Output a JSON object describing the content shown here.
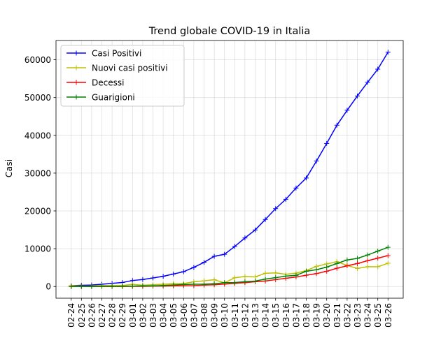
{
  "chart_data": {
    "type": "line",
    "title": "Trend globale COVID-19 in Italia",
    "xlabel": "",
    "ylabel": "Casi",
    "ylim": [
      -3100,
      65100
    ],
    "yticks": [
      0,
      10000,
      20000,
      30000,
      40000,
      50000,
      60000
    ],
    "ytick_labels": [
      "0",
      "10000",
      "20000",
      "30000",
      "40000",
      "50000",
      "60000"
    ],
    "grid": true,
    "legend_position": "top-left",
    "categories": [
      "02-24",
      "02-25",
      "02-26",
      "02-27",
      "02-28",
      "02-29",
      "03-01",
      "03-02",
      "03-03",
      "03-04",
      "03-05",
      "03-06",
      "03-07",
      "03-08",
      "03-09",
      "03-10",
      "03-11",
      "03-12",
      "03-13",
      "03-14",
      "03-15",
      "03-16",
      "03-17",
      "03-18",
      "03-19",
      "03-20",
      "03-21",
      "03-22",
      "03-23",
      "03-24",
      "03-25",
      "03-26"
    ],
    "series": [
      {
        "name": "Casi Positivi",
        "color": "#0000ff",
        "values": [
          221,
          311,
          385,
          588,
          821,
          1049,
          1577,
          1835,
          2263,
          2706,
          3296,
          3916,
          5061,
          6387,
          7985,
          8514,
          10590,
          12839,
          14955,
          17750,
          20603,
          23073,
          26062,
          28710,
          33190,
          37860,
          42681,
          46638,
          50418,
          54030,
          57521,
          62013
        ]
      },
      {
        "name": "Nuovi casi positivi",
        "color": "#bfbf00",
        "values": [
          221,
          93,
          78,
          250,
          238,
          240,
          561,
          347,
          466,
          587,
          769,
          778,
          1247,
          1492,
          1797,
          977,
          2313,
          2651,
          2547,
          3497,
          3590,
          3233,
          3526,
          4207,
          5322,
          5986,
          6557,
          5560,
          4789,
          5249,
          5210,
          6153
        ]
      },
      {
        "name": "Decessi",
        "color": "#ff0000",
        "values": [
          7,
          10,
          12,
          17,
          21,
          29,
          34,
          52,
          79,
          107,
          148,
          197,
          233,
          366,
          463,
          631,
          827,
          1016,
          1266,
          1441,
          1809,
          2158,
          2503,
          2978,
          3405,
          4032,
          4825,
          5476,
          6077,
          6820,
          7503,
          8165
        ]
      },
      {
        "name": "Guarigioni",
        "color": "#008000",
        "values": [
          1,
          1,
          3,
          45,
          46,
          50,
          83,
          149,
          160,
          276,
          414,
          523,
          589,
          622,
          724,
          1004,
          1045,
          1258,
          1439,
          1966,
          2335,
          2749,
          2941,
          4025,
          4440,
          5129,
          6072,
          7024,
          7432,
          8326,
          9362,
          10361
        ]
      }
    ]
  }
}
